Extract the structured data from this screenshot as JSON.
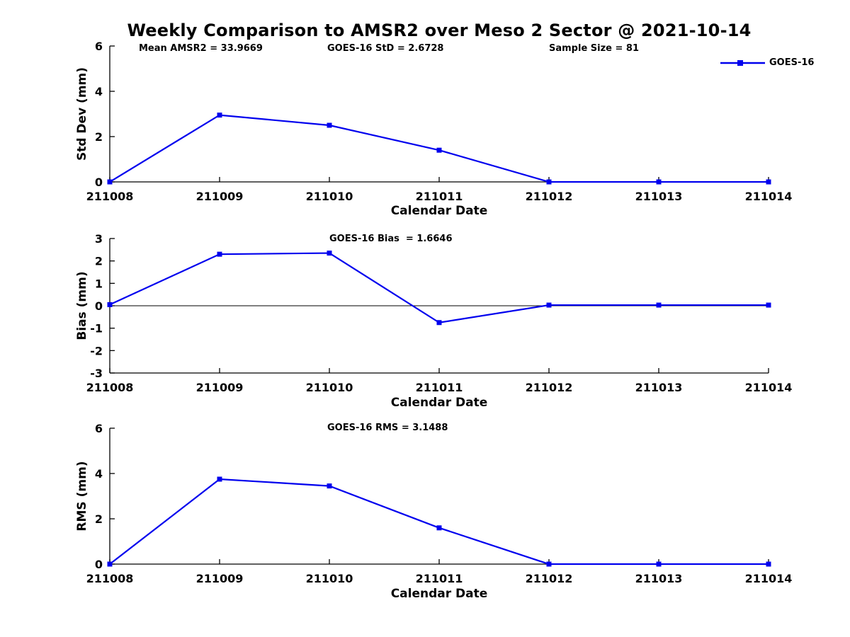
{
  "title": "Weekly Comparison to AMSR2 over Meso 2 Sector @ 2021-10-14",
  "legend": {
    "label": "GOES-16"
  },
  "colors": {
    "line_blue": "#0000EE",
    "axis_black": "#000000",
    "background": "#FFFFFF"
  },
  "chart_data": [
    {
      "type": "line",
      "series_name": "GOES-16",
      "ylabel": "Std Dev (mm)",
      "xlabel": "Calendar Date",
      "ylim": [
        0,
        6
      ],
      "yticks": [
        0,
        2,
        4,
        6
      ],
      "categories": [
        "211008",
        "211009",
        "211010",
        "211011",
        "211012",
        "211013",
        "211014"
      ],
      "values": [
        0,
        2.95,
        2.5,
        1.4,
        0,
        0,
        0
      ],
      "grid": false,
      "legend_position": "top-right",
      "annotations": [
        {
          "text": "Mean AMSR2 = 33.9669"
        },
        {
          "text": "GOES-16 StD = 2.6728"
        },
        {
          "text": "Sample Size = 81"
        }
      ]
    },
    {
      "type": "line",
      "series_name": "GOES-16",
      "ylabel": "Bias (mm)",
      "xlabel": "Calendar Date",
      "ylim": [
        -3,
        3
      ],
      "yticks": [
        3,
        2,
        1,
        0,
        -1,
        -2,
        -3
      ],
      "categories": [
        "211008",
        "211009",
        "211010",
        "211011",
        "211012",
        "211013",
        "211014"
      ],
      "values": [
        0.05,
        2.3,
        2.35,
        -0.75,
        0.03,
        0.03,
        0.03
      ],
      "zero_line": true,
      "grid": false,
      "annotations": [
        {
          "text": "GOES-16 Bias  = 1.6646"
        }
      ]
    },
    {
      "type": "line",
      "series_name": "GOES-16",
      "ylabel": "RMS (mm)",
      "xlabel": "Calendar Date",
      "ylim": [
        0,
        6
      ],
      "yticks": [
        0,
        2,
        4,
        6
      ],
      "categories": [
        "211008",
        "211009",
        "211010",
        "211011",
        "211012",
        "211013",
        "211014"
      ],
      "values": [
        0,
        3.75,
        3.45,
        1.6,
        0,
        0,
        0
      ],
      "grid": false,
      "annotations": [
        {
          "text": "GOES-16 RMS = 3.1488"
        }
      ]
    }
  ]
}
